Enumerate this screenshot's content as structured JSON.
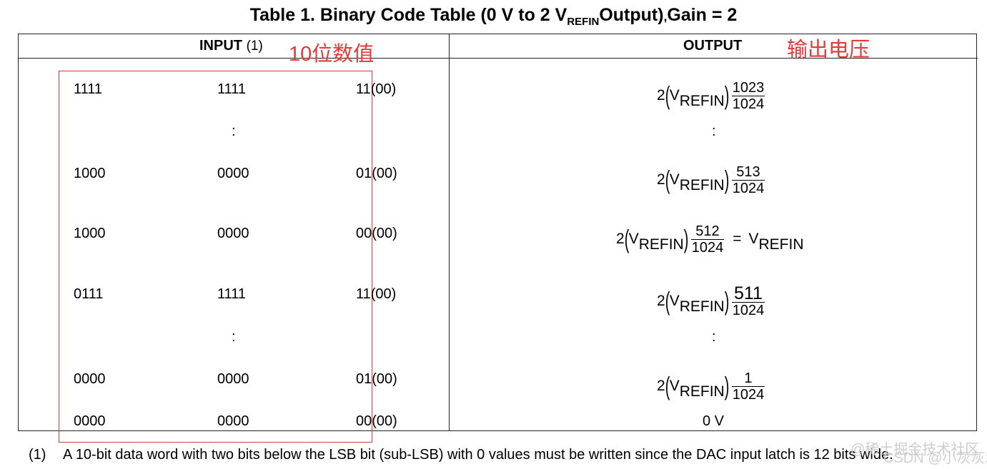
{
  "title": {
    "prefix": "Table 1. Binary Code Table (0 V to 2 V",
    "sub": "REFIN",
    "middle": "Output)",
    "comma": ",",
    "suffix": "Gain = 2"
  },
  "headers": {
    "input": "INPUT",
    "input_note": "(1)",
    "output": "OUTPUT"
  },
  "annotations": {
    "input": "10位数值",
    "output": "输出电压"
  },
  "rows": [
    {
      "b1": "1111",
      "b2": "1111",
      "b3": "11(00)"
    },
    {
      "b1": "1000",
      "b2": "0000",
      "b3": "01(00)"
    },
    {
      "b1": "1000",
      "b2": "0000",
      "b3": "00(00)"
    },
    {
      "b1": "0111",
      "b2": "1111",
      "b3": "11(00)"
    },
    {
      "b1": "0000",
      "b2": "0000",
      "b3": "01(00)"
    },
    {
      "b1": "0000",
      "b2": "0000",
      "b3": "00(00)"
    }
  ],
  "ellipsis": ":",
  "formulas": {
    "coef": "2",
    "v": "V",
    "sub": "REFIN",
    "den": "1024",
    "nums": [
      "1023",
      "513",
      "512",
      "511",
      "1"
    ],
    "equals": "=",
    "rhs_v": "V",
    "rhs_sub": "REFIN"
  },
  "zero_output": "0 V",
  "footnote": {
    "number": "(1)",
    "text": "A 10-bit data word with two bits below the LSB bit (sub-LSB) with 0 values must be written since the DAC input latch is 12 bits wide."
  },
  "watermark": {
    "line1": "@稀土掘金技术社区",
    "line2": "CSDN @小灰灰zz"
  },
  "colors": {
    "annotation": "#e53a3a",
    "border": "#222222",
    "watermark": "#c8c8c8"
  }
}
